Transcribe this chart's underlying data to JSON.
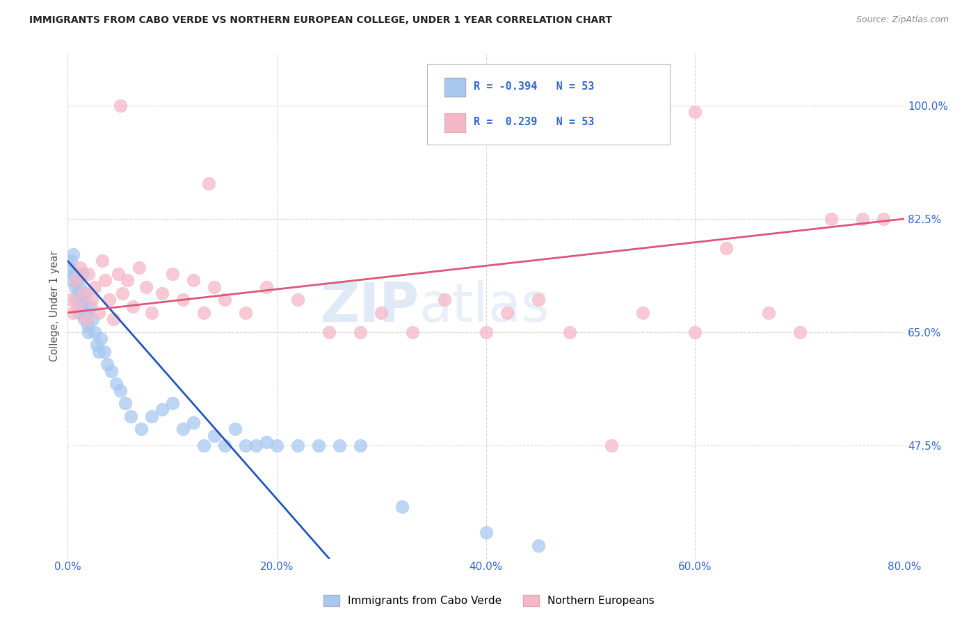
{
  "title": "IMMIGRANTS FROM CABO VERDE VS NORTHERN EUROPEAN COLLEGE, UNDER 1 YEAR CORRELATION CHART",
  "source": "Source: ZipAtlas.com",
  "ylabel": "College, Under 1 year",
  "x_tick_labels": [
    "0.0%",
    "20.0%",
    "40.0%",
    "60.0%",
    "80.0%"
  ],
  "x_tick_values": [
    0.0,
    20.0,
    40.0,
    60.0,
    80.0
  ],
  "y_tick_labels": [
    "47.5%",
    "65.0%",
    "82.5%",
    "100.0%"
  ],
  "y_tick_values": [
    47.5,
    65.0,
    82.5,
    100.0
  ],
  "xlim": [
    0.0,
    80.0
  ],
  "ylim": [
    30.0,
    108.0
  ],
  "legend_label_blue": "Immigrants from Cabo Verde",
  "legend_label_pink": "Northern Europeans",
  "r_blue": -0.394,
  "n_blue": 53,
  "r_pink": 0.239,
  "n_pink": 53,
  "blue_color": "#A8C8F0",
  "pink_color": "#F4B8C8",
  "line_blue_color": "#2255BB",
  "line_pink_color": "#DD5577",
  "background_color": "#FFFFFF",
  "watermark_zip": "ZIP",
  "watermark_atlas": "atlas",
  "cabo_verde_x": [
    0.2,
    0.3,
    0.4,
    0.5,
    0.6,
    0.7,
    0.8,
    0.9,
    1.0,
    1.1,
    1.2,
    1.3,
    1.4,
    1.5,
    1.6,
    1.7,
    1.8,
    1.9,
    2.0,
    2.2,
    2.4,
    2.6,
    2.8,
    3.0,
    3.2,
    3.5,
    3.8,
    4.2,
    4.6,
    5.0,
    5.5,
    6.0,
    7.0,
    8.0,
    9.0,
    10.0,
    11.0,
    12.0,
    13.0,
    14.0,
    15.0,
    16.0,
    17.0,
    18.0,
    19.0,
    20.0,
    22.0,
    24.0,
    26.0,
    28.0,
    32.0,
    40.0,
    45.0
  ],
  "cabo_verde_y": [
    75.0,
    76.0,
    73.0,
    77.0,
    74.0,
    72.0,
    70.0,
    73.0,
    71.0,
    68.0,
    72.0,
    69.0,
    74.0,
    70.0,
    67.0,
    71.0,
    68.0,
    66.0,
    65.0,
    69.0,
    67.0,
    65.0,
    63.0,
    62.0,
    64.0,
    62.0,
    60.0,
    59.0,
    57.0,
    56.0,
    54.0,
    52.0,
    50.0,
    52.0,
    53.0,
    54.0,
    50.0,
    51.0,
    47.5,
    49.0,
    47.5,
    50.0,
    47.5,
    47.5,
    48.0,
    47.5,
    47.5,
    47.5,
    47.5,
    47.5,
    38.0,
    34.0,
    32.0
  ],
  "ne_x": [
    0.3,
    0.5,
    0.8,
    1.0,
    1.2,
    1.5,
    1.8,
    2.0,
    2.3,
    2.6,
    3.0,
    3.3,
    3.6,
    4.0,
    4.4,
    4.8,
    5.2,
    5.7,
    6.2,
    6.8,
    7.5,
    8.0,
    9.0,
    10.0,
    11.0,
    12.0,
    13.0,
    14.0,
    15.0,
    17.0,
    19.0,
    22.0,
    25.0,
    28.0,
    30.0,
    33.0,
    36.0,
    40.0,
    42.0,
    45.0,
    48.0,
    52.0,
    55.0,
    60.0,
    63.0,
    67.0,
    70.0,
    73.0,
    76.0,
    78.0,
    5.0,
    60.0,
    13.5
  ],
  "ne_y": [
    70.0,
    68.0,
    73.0,
    69.0,
    75.0,
    71.0,
    67.0,
    74.0,
    70.0,
    72.0,
    68.0,
    76.0,
    73.0,
    70.0,
    67.0,
    74.0,
    71.0,
    73.0,
    69.0,
    75.0,
    72.0,
    68.0,
    71.0,
    74.0,
    70.0,
    73.0,
    68.0,
    72.0,
    70.0,
    68.0,
    72.0,
    70.0,
    65.0,
    65.0,
    68.0,
    65.0,
    70.0,
    65.0,
    68.0,
    70.0,
    65.0,
    47.5,
    68.0,
    65.0,
    78.0,
    68.0,
    65.0,
    82.5,
    82.5,
    82.5,
    100.0,
    99.0,
    88.0
  ]
}
